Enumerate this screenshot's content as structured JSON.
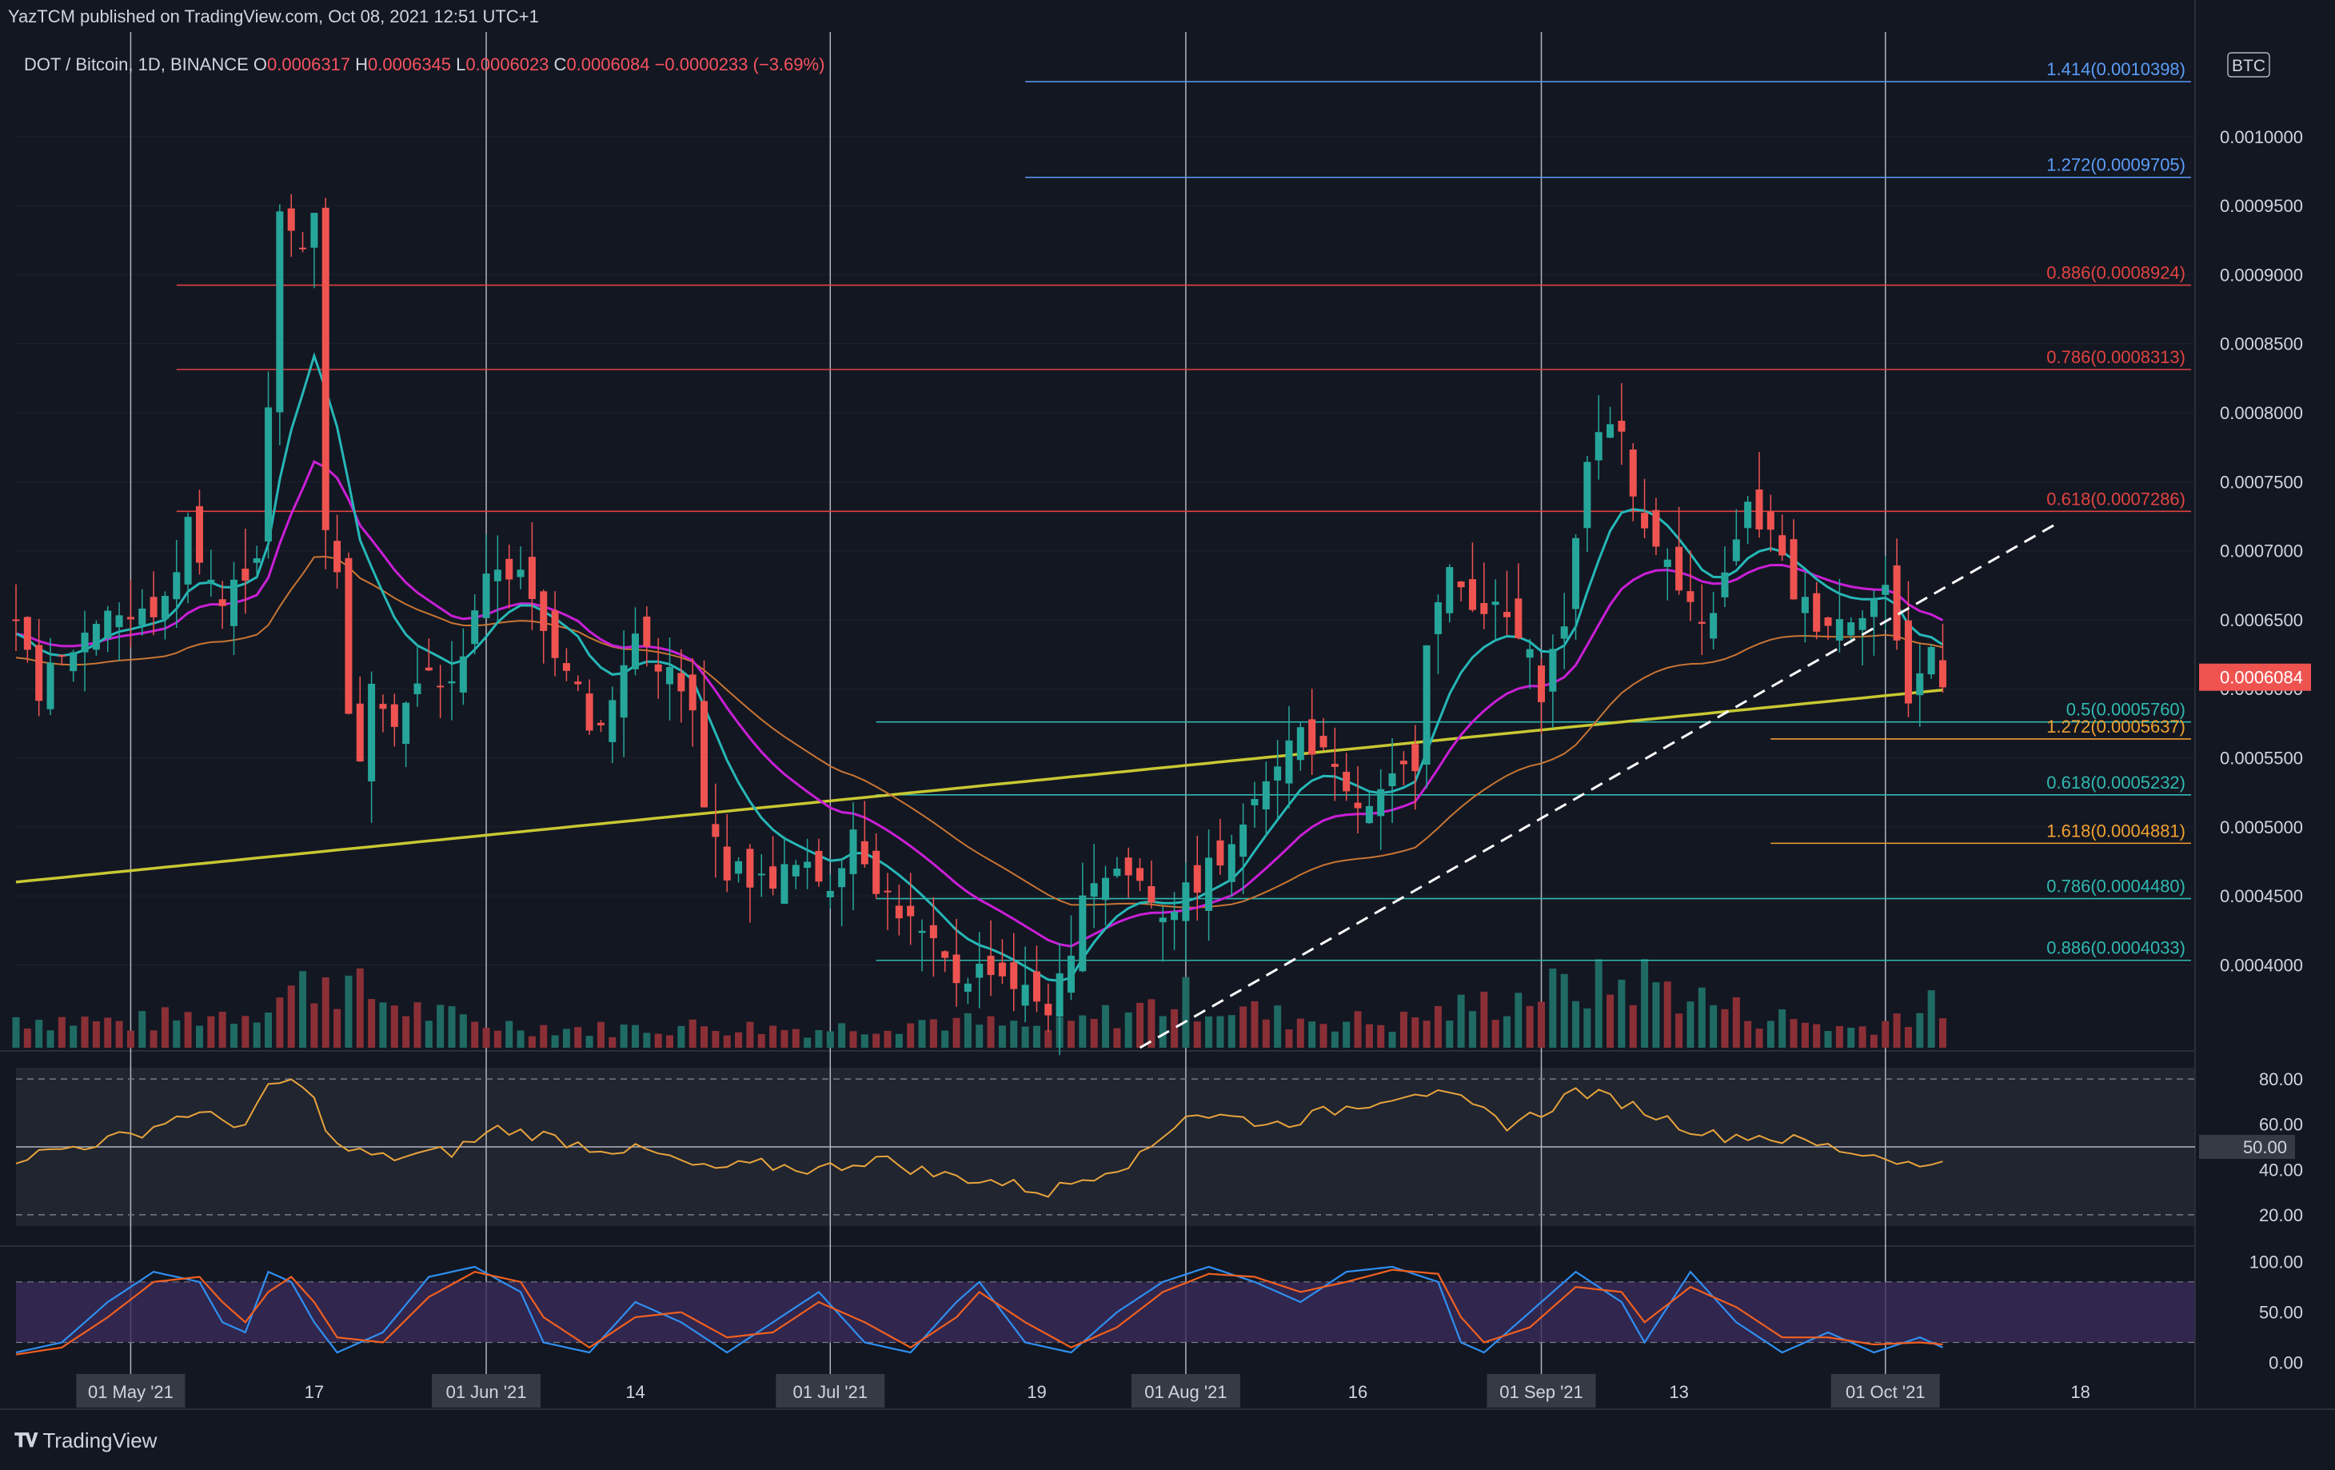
{
  "header": {
    "published": "YazTCM published on TradingView.com, Oct 08, 2021 12:51 UTC+1"
  },
  "legend": {
    "symbol": "DOT / Bitcoin, 1D, BINANCE",
    "o_label": "O",
    "o": "0.0006317",
    "h_label": "H",
    "h": "0.0006345",
    "l_label": "L",
    "l": "0.0006023",
    "c_label": "C",
    "c": "0.0006084",
    "change": "−0.0000233 (−3.69%)"
  },
  "footer": {
    "brand": "TradingView",
    "logo_icon": "tradingview-logo-icon"
  },
  "colors": {
    "bg": "#131722",
    "up": "#26a69a",
    "down": "#ef5350",
    "vol_up": "#1f6b64",
    "vol_down": "#8b2f36",
    "ema20": "#26b7b7",
    "ema50": "#c91fd6",
    "ma100": "#c87533",
    "ma200": "#c8c832",
    "fib_ext_blue": "#5b9cf6",
    "fib_red": "#e0433f",
    "fib_teal": "#2fb9b0",
    "fib_orange": "#f0a030",
    "rsi": "#e8a33d",
    "stoch_k": "#2f8ff0",
    "stoch_d": "#f06020",
    "stoch_band": "#3a2a5a"
  },
  "chart_data": {
    "type": "candlestick",
    "symbol": "DOT / Bitcoin",
    "interval": "1D",
    "exchange": "BINANCE",
    "currency_label": "BTC",
    "current_price": "0.0006084",
    "y_ticks": [
      "0.0010000",
      "0.0009500",
      "0.0009000",
      "0.0008500",
      "0.0008000",
      "0.0007500",
      "0.0007000",
      "0.0006500",
      "0.0006000",
      "0.0005500",
      "0.0005000",
      "0.0004500",
      "0.0004000"
    ],
    "y_tick_values": [
      0.001,
      0.00095,
      0.0009,
      0.00085,
      0.0008,
      0.00075,
      0.0007,
      0.00065,
      0.0006,
      0.00055,
      0.0005,
      0.00045,
      0.0004
    ],
    "ylim": [
      0.00034,
      0.00107
    ],
    "x_ticks": [
      {
        "label": "01 May '21",
        "day": 0,
        "boxed": true
      },
      {
        "label": "17",
        "day": 16,
        "boxed": false
      },
      {
        "label": "01 Jun '21",
        "day": 31,
        "boxed": true
      },
      {
        "label": "14",
        "day": 44,
        "boxed": false
      },
      {
        "label": "01 Jul '21",
        "day": 61,
        "boxed": true
      },
      {
        "label": "19",
        "day": 79,
        "boxed": false
      },
      {
        "label": "01 Aug '21",
        "day": 92,
        "boxed": true
      },
      {
        "label": "16",
        "day": 107,
        "boxed": false
      },
      {
        "label": "01 Sep '21",
        "day": 123,
        "boxed": true
      },
      {
        "label": "13",
        "day": 135,
        "boxed": false
      },
      {
        "label": "01 Oct '21",
        "day": 153,
        "boxed": true
      },
      {
        "label": "18",
        "day": 170,
        "boxed": false
      }
    ],
    "x_range_days": [
      -10,
      180
    ],
    "fib_levels": [
      {
        "label": "1.414(0.0010398)",
        "value": 0.0010398,
        "color": "fib_ext_blue",
        "from_day": 78
      },
      {
        "label": "1.272(0.0009705)",
        "value": 0.0009705,
        "color": "fib_ext_blue",
        "from_day": 78
      },
      {
        "label": "0.886(0.0008924)",
        "value": 0.0008924,
        "color": "fib_red",
        "from_day": 4
      },
      {
        "label": "0.786(0.0008313)",
        "value": 0.0008313,
        "color": "fib_red",
        "from_day": 4
      },
      {
        "label": "0.618(0.0007286)",
        "value": 0.0007286,
        "color": "fib_red",
        "from_day": 4
      },
      {
        "label": "0.5(0.0005760)",
        "value": 0.000576,
        "color": "fib_teal",
        "from_day": 65
      },
      {
        "label": "1.272(0.0005637)",
        "value": 0.0005637,
        "color": "fib_orange",
        "from_day": 143
      },
      {
        "label": "0.618(0.0005232)",
        "value": 0.0005232,
        "color": "fib_teal",
        "from_day": 65
      },
      {
        "label": "1.618(0.0004881)",
        "value": 0.0004881,
        "color": "fib_orange",
        "from_day": 143
      },
      {
        "label": "0.786(0.0004480)",
        "value": 0.000448,
        "color": "fib_teal",
        "from_day": 65
      },
      {
        "label": "0.886(0.0004033)",
        "value": 0.0004033,
        "color": "fib_teal",
        "from_day": 65
      }
    ],
    "trendline": {
      "from": [
        88,
        0.00034
      ],
      "to": [
        168,
        0.00072
      ]
    },
    "ohlc_keypoints": [
      [
        -10,
        0.00064
      ],
      [
        -8,
        0.0006
      ],
      [
        -5,
        0.00063
      ],
      [
        -2,
        0.00066
      ],
      [
        0,
        0.00065
      ],
      [
        3,
        0.00066
      ],
      [
        5,
        0.00072
      ],
      [
        8,
        0.00066
      ],
      [
        11,
        0.0007
      ],
      [
        12,
        0.0008
      ],
      [
        13,
        0.00094
      ],
      [
        15,
        0.00092
      ],
      [
        16,
        0.00095
      ],
      [
        17,
        0.00072
      ],
      [
        18,
        0.00068
      ],
      [
        19,
        0.00059
      ],
      [
        20,
        0.00054
      ],
      [
        21,
        0.00061
      ],
      [
        23,
        0.00058
      ],
      [
        26,
        0.00061
      ],
      [
        28,
        0.0006
      ],
      [
        30,
        0.00066
      ],
      [
        32,
        0.00069
      ],
      [
        34,
        0.00068
      ],
      [
        36,
        0.00064
      ],
      [
        39,
        0.00061
      ],
      [
        40,
        0.00057
      ],
      [
        42,
        0.00059
      ],
      [
        44,
        0.00064
      ],
      [
        47,
        0.00061
      ],
      [
        49,
        0.00058
      ],
      [
        50,
        0.00051
      ],
      [
        52,
        0.00047
      ],
      [
        55,
        0.00046
      ],
      [
        58,
        0.00047
      ],
      [
        61,
        0.00046
      ],
      [
        62,
        0.00048
      ],
      [
        63,
        0.0005
      ],
      [
        65,
        0.00046
      ],
      [
        68,
        0.00043
      ],
      [
        70,
        0.00041
      ],
      [
        72,
        0.00039
      ],
      [
        75,
        0.0004
      ],
      [
        78,
        0.00038
      ],
      [
        80,
        0.00037
      ],
      [
        82,
        0.0004
      ],
      [
        83,
        0.00046
      ],
      [
        86,
        0.00047
      ],
      [
        88,
        0.00046
      ],
      [
        90,
        0.00044
      ],
      [
        92,
        0.00045
      ],
      [
        94,
        0.00047
      ],
      [
        96,
        0.00048
      ],
      [
        98,
        0.00053
      ],
      [
        100,
        0.00055
      ],
      [
        102,
        0.00057
      ],
      [
        104,
        0.00055
      ],
      [
        106,
        0.00052
      ],
      [
        108,
        0.00051
      ],
      [
        110,
        0.00053
      ],
      [
        112,
        0.00055
      ],
      [
        113,
        0.00064
      ],
      [
        115,
        0.00068
      ],
      [
        118,
        0.00066
      ],
      [
        120,
        0.00065
      ],
      [
        122,
        0.00062
      ],
      [
        123,
        0.0006
      ],
      [
        125,
        0.00065
      ],
      [
        126,
        0.0007
      ],
      [
        127,
        0.00077
      ],
      [
        129,
        0.0008
      ],
      [
        130,
        0.00078
      ],
      [
        131,
        0.00074
      ],
      [
        133,
        0.00071
      ],
      [
        135,
        0.00067
      ],
      [
        137,
        0.00064
      ],
      [
        139,
        0.00068
      ],
      [
        141,
        0.00073
      ],
      [
        143,
        0.00071
      ],
      [
        145,
        0.00067
      ],
      [
        147,
        0.00065
      ],
      [
        149,
        0.00065
      ],
      [
        151,
        0.00066
      ],
      [
        153,
        0.00067
      ],
      [
        154,
        0.00064
      ],
      [
        155,
        0.00059
      ],
      [
        156,
        0.00061
      ],
      [
        157,
        0.00063
      ],
      [
        158,
        0.00061
      ]
    ],
    "volume_keypoints": [
      [
        -10,
        0.5
      ],
      [
        0,
        0.4
      ],
      [
        10,
        0.6
      ],
      [
        15,
        1.0
      ],
      [
        17,
        1.2
      ],
      [
        20,
        0.9
      ],
      [
        25,
        0.6
      ],
      [
        30,
        0.4
      ],
      [
        40,
        0.3
      ],
      [
        50,
        0.35
      ],
      [
        60,
        0.3
      ],
      [
        70,
        0.45
      ],
      [
        80,
        0.3
      ],
      [
        92,
        0.8
      ],
      [
        100,
        0.5
      ],
      [
        110,
        0.4
      ],
      [
        123,
        0.9
      ],
      [
        128,
        1.0
      ],
      [
        132,
        1.1
      ],
      [
        140,
        0.6
      ],
      [
        150,
        0.3
      ],
      [
        158,
        0.7
      ]
    ],
    "indicators": {
      "rsi": {
        "levels": [
          "80.00",
          "60.00",
          "40.00",
          "20.00"
        ],
        "level_values": [
          80,
          60,
          40,
          20
        ],
        "midline": "50.00",
        "ylim": [
          15,
          85
        ],
        "keypoints": [
          [
            -10,
            45
          ],
          [
            -5,
            50
          ],
          [
            0,
            55
          ],
          [
            5,
            65
          ],
          [
            10,
            60
          ],
          [
            12,
            75
          ],
          [
            14,
            80
          ],
          [
            16,
            70
          ],
          [
            18,
            50
          ],
          [
            22,
            45
          ],
          [
            28,
            48
          ],
          [
            32,
            58
          ],
          [
            36,
            55
          ],
          [
            40,
            50
          ],
          [
            45,
            48
          ],
          [
            50,
            40
          ],
          [
            55,
            42
          ],
          [
            60,
            40
          ],
          [
            65,
            45
          ],
          [
            70,
            38
          ],
          [
            75,
            35
          ],
          [
            80,
            30
          ],
          [
            85,
            40
          ],
          [
            88,
            45
          ],
          [
            92,
            65
          ],
          [
            96,
            63
          ],
          [
            100,
            60
          ],
          [
            104,
            65
          ],
          [
            108,
            70
          ],
          [
            112,
            75
          ],
          [
            116,
            70
          ],
          [
            120,
            60
          ],
          [
            123,
            65
          ],
          [
            126,
            75
          ],
          [
            130,
            70
          ],
          [
            134,
            62
          ],
          [
            138,
            55
          ],
          [
            142,
            55
          ],
          [
            146,
            52
          ],
          [
            150,
            48
          ],
          [
            154,
            45
          ],
          [
            156,
            40
          ],
          [
            158,
            45
          ]
        ]
      },
      "stoch_rsi": {
        "levels": [
          "100.00",
          "50.00",
          "0.00"
        ],
        "level_values": [
          100,
          50,
          0
        ],
        "ylim": [
          -5,
          110
        ],
        "k_keypoints": [
          [
            -10,
            10
          ],
          [
            -6,
            20
          ],
          [
            -2,
            60
          ],
          [
            2,
            90
          ],
          [
            6,
            80
          ],
          [
            8,
            40
          ],
          [
            10,
            30
          ],
          [
            12,
            90
          ],
          [
            14,
            80
          ],
          [
            16,
            40
          ],
          [
            18,
            10
          ],
          [
            22,
            30
          ],
          [
            26,
            85
          ],
          [
            30,
            95
          ],
          [
            34,
            70
          ],
          [
            36,
            20
          ],
          [
            40,
            10
          ],
          [
            44,
            60
          ],
          [
            48,
            40
          ],
          [
            52,
            10
          ],
          [
            56,
            40
          ],
          [
            60,
            70
          ],
          [
            64,
            20
          ],
          [
            68,
            10
          ],
          [
            72,
            60
          ],
          [
            74,
            80
          ],
          [
            78,
            20
          ],
          [
            82,
            10
          ],
          [
            86,
            50
          ],
          [
            90,
            80
          ],
          [
            94,
            95
          ],
          [
            98,
            80
          ],
          [
            102,
            60
          ],
          [
            106,
            90
          ],
          [
            110,
            95
          ],
          [
            114,
            80
          ],
          [
            116,
            20
          ],
          [
            118,
            10
          ],
          [
            122,
            50
          ],
          [
            126,
            90
          ],
          [
            130,
            60
          ],
          [
            132,
            20
          ],
          [
            136,
            90
          ],
          [
            140,
            40
          ],
          [
            144,
            10
          ],
          [
            148,
            30
          ],
          [
            152,
            10
          ],
          [
            156,
            25
          ],
          [
            158,
            15
          ]
        ],
        "d_keypoints": [
          [
            -10,
            8
          ],
          [
            -6,
            15
          ],
          [
            -2,
            45
          ],
          [
            2,
            80
          ],
          [
            6,
            85
          ],
          [
            8,
            60
          ],
          [
            10,
            40
          ],
          [
            12,
            70
          ],
          [
            14,
            85
          ],
          [
            16,
            60
          ],
          [
            18,
            25
          ],
          [
            22,
            20
          ],
          [
            26,
            65
          ],
          [
            30,
            90
          ],
          [
            34,
            80
          ],
          [
            36,
            45
          ],
          [
            40,
            15
          ],
          [
            44,
            45
          ],
          [
            48,
            50
          ],
          [
            52,
            25
          ],
          [
            56,
            30
          ],
          [
            60,
            60
          ],
          [
            64,
            40
          ],
          [
            68,
            15
          ],
          [
            72,
            45
          ],
          [
            74,
            70
          ],
          [
            78,
            40
          ],
          [
            82,
            15
          ],
          [
            86,
            35
          ],
          [
            90,
            70
          ],
          [
            94,
            88
          ],
          [
            98,
            85
          ],
          [
            102,
            70
          ],
          [
            106,
            80
          ],
          [
            110,
            92
          ],
          [
            114,
            88
          ],
          [
            116,
            45
          ],
          [
            118,
            20
          ],
          [
            122,
            35
          ],
          [
            126,
            75
          ],
          [
            130,
            70
          ],
          [
            132,
            40
          ],
          [
            136,
            75
          ],
          [
            140,
            55
          ],
          [
            144,
            25
          ],
          [
            148,
            25
          ],
          [
            152,
            18
          ],
          [
            156,
            20
          ],
          [
            158,
            18
          ]
        ]
      }
    }
  }
}
